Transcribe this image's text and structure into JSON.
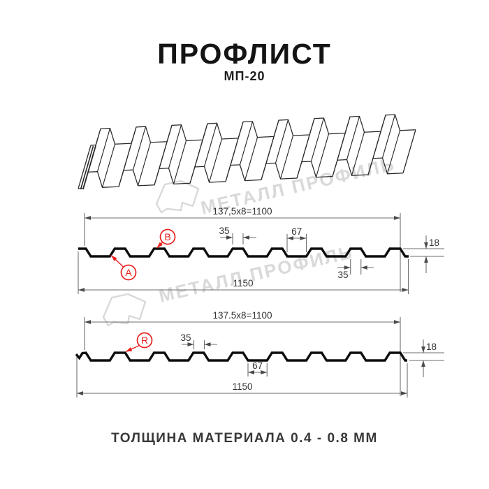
{
  "header": {
    "title": "ПРОФЛИСТ",
    "subtitle": "МП-20"
  },
  "watermark": {
    "text": "МЕТАЛЛ ПРОФИЛЬ"
  },
  "footer": {
    "caption": "ТОЛЩИНА МАТЕРИАЛА 0.4 - 0.8 ММ"
  },
  "colors": {
    "accent_red": "#e8211f",
    "dim_line": "#6e6e6e",
    "profile_line": "#0d0d0d",
    "dim_text": "#333333",
    "watermark": "#d9d9d9",
    "sheet_line": "#2a2a2a"
  },
  "profile1": {
    "span_top": "137,5x8=1100",
    "overall_width": "1150",
    "rib_top_width": "35",
    "valley_width": "67",
    "height": "18",
    "rib_top_width_bottom": "35",
    "label_a": "A",
    "label_b": "B"
  },
  "profile2": {
    "span_top": "137.5x8=1100",
    "overall_width": "1150",
    "rib_top_width": "35",
    "valley_width": "67",
    "height": "18",
    "label_r": "R"
  }
}
